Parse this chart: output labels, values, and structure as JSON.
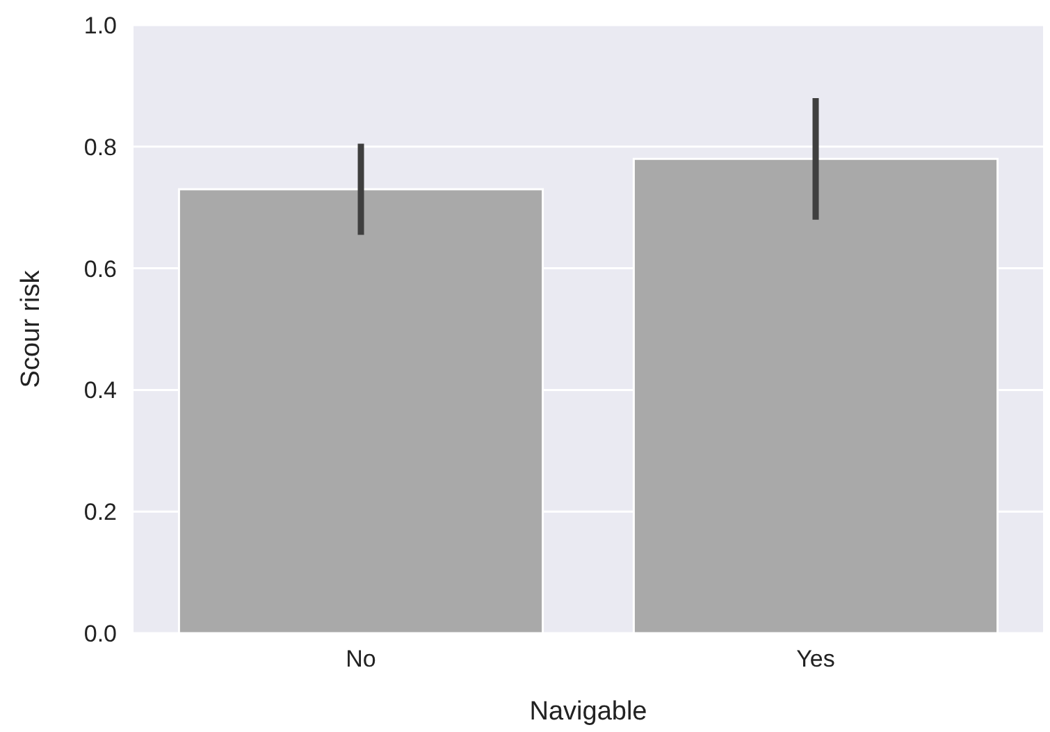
{
  "chart_data": {
    "type": "bar",
    "xlabel": "Navigable",
    "ylabel": "Scour risk",
    "categories": [
      "No",
      "Yes"
    ],
    "values": [
      0.73,
      0.78
    ],
    "errors": [
      [
        0.655,
        0.805
      ],
      [
        0.68,
        0.88
      ]
    ],
    "color": "#a9a9a9",
    "ylim": [
      0,
      1
    ],
    "yticks": [
      {
        "value": 0,
        "label": "0.0"
      },
      {
        "value": 0.2,
        "label": "0.2"
      },
      {
        "value": 0.4,
        "label": "0.4"
      },
      {
        "value": 0.6,
        "label": "0.6"
      },
      {
        "value": 0.8,
        "label": "0.8"
      },
      {
        "value": 1,
        "label": "1.0"
      }
    ],
    "grid": "y"
  }
}
